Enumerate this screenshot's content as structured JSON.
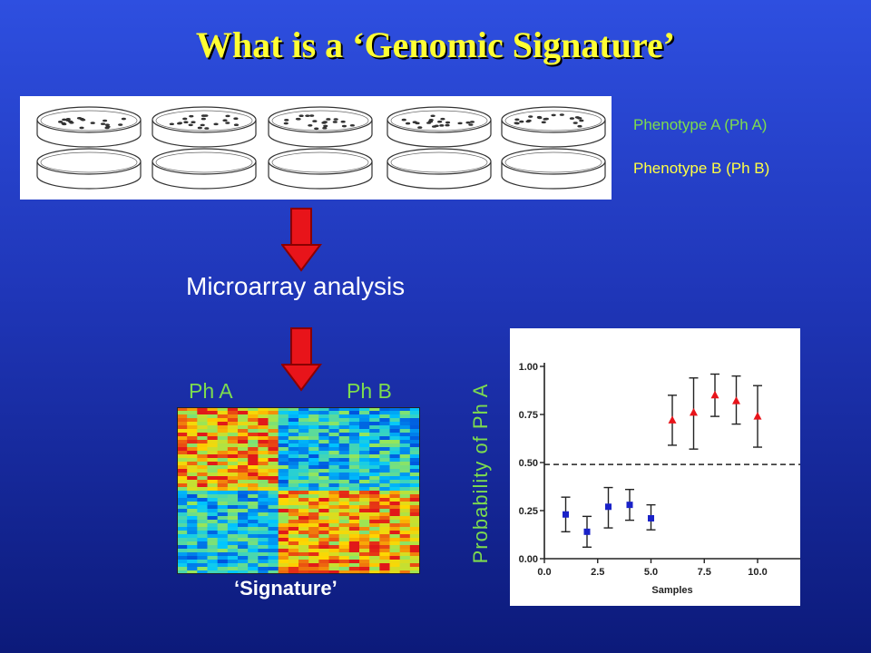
{
  "slide": {
    "title": "What is a ‘Genomic Signature’",
    "legend_a": "Phenotype A (Ph A)",
    "legend_b": "Phenotype B (Ph B)",
    "process_label": "Microarray analysis",
    "heatmap_left_label": "Ph A",
    "heatmap_right_label": "Ph B",
    "heatmap_caption": "‘Signature’",
    "ylabel": "Probability of Ph A"
  },
  "colors": {
    "title": "#ffff33",
    "phenotype_a": "#7ddc4e",
    "phenotype_b": "#ffff44",
    "arrow": "#e8141a",
    "marker_a": "#1a22c8",
    "marker_b": "#e8141a"
  },
  "dishes": {
    "rows": 2,
    "columns": 5,
    "top_row_has_colonies": true
  },
  "chart_data": {
    "type": "scatter",
    "title": "",
    "xlabel": "Samples",
    "ylabel": "Probability of Ph A",
    "xlim": [
      0,
      12
    ],
    "ylim": [
      0,
      1.0
    ],
    "x_ticks": [
      "0.0",
      "2.5",
      "5.0",
      "7.5",
      "10.0"
    ],
    "y_ticks": [
      "0.00",
      "0.25",
      "0.50",
      "0.75",
      "1.00"
    ],
    "threshold": 0.49,
    "threshold_style": "dashed",
    "series": [
      {
        "marker": "square",
        "color": "#1a22c8",
        "points": [
          {
            "x": 1,
            "y": 0.23,
            "lo": 0.14,
            "hi": 0.32
          },
          {
            "x": 2,
            "y": 0.14,
            "lo": 0.06,
            "hi": 0.22
          },
          {
            "x": 3,
            "y": 0.27,
            "lo": 0.16,
            "hi": 0.37
          },
          {
            "x": 4,
            "y": 0.28,
            "lo": 0.2,
            "hi": 0.36
          },
          {
            "x": 5,
            "y": 0.21,
            "lo": 0.15,
            "hi": 0.28
          }
        ]
      },
      {
        "marker": "triangle",
        "color": "#e8141a",
        "points": [
          {
            "x": 6,
            "y": 0.72,
            "lo": 0.59,
            "hi": 0.85
          },
          {
            "x": 7,
            "y": 0.76,
            "lo": 0.57,
            "hi": 0.94
          },
          {
            "x": 8,
            "y": 0.85,
            "lo": 0.74,
            "hi": 0.96
          },
          {
            "x": 9,
            "y": 0.82,
            "lo": 0.7,
            "hi": 0.95
          },
          {
            "x": 10,
            "y": 0.74,
            "lo": 0.58,
            "hi": 0.9
          }
        ]
      }
    ]
  }
}
